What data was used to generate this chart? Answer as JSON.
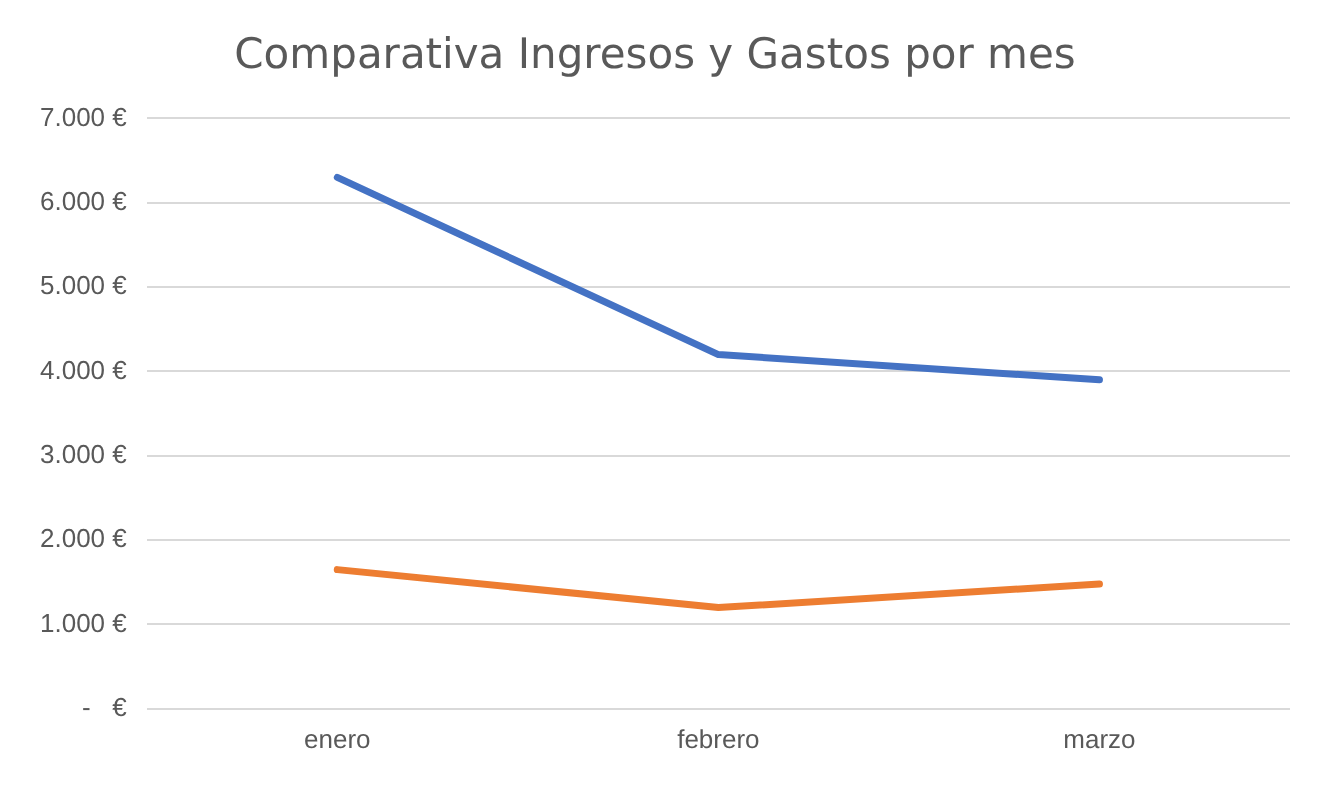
{
  "chart_data": {
    "type": "line",
    "title": "Comparativa Ingresos y Gastos por mes",
    "categories": [
      "enero",
      "febrero",
      "marzo"
    ],
    "series": [
      {
        "color": "#4472c4",
        "values": [
          6300,
          4200,
          3900
        ]
      },
      {
        "color": "#ed7d31",
        "values": [
          1650,
          1200,
          1480
        ]
      }
    ],
    "ylim": [
      0,
      7000
    ],
    "yticks": [
      {
        "value": 0,
        "label": "-   €"
      },
      {
        "value": 1000,
        "label": "1.000 €"
      },
      {
        "value": 2000,
        "label": "2.000 €"
      },
      {
        "value": 3000,
        "label": "3.000 €"
      },
      {
        "value": 4000,
        "label": "4.000 €"
      },
      {
        "value": 5000,
        "label": "5.000 €"
      },
      {
        "value": 6000,
        "label": "6.000 €"
      },
      {
        "value": 7000,
        "label": "7.000 €"
      }
    ],
    "grid": "y",
    "legend": false,
    "marker": "none",
    "line_style": "solid"
  }
}
